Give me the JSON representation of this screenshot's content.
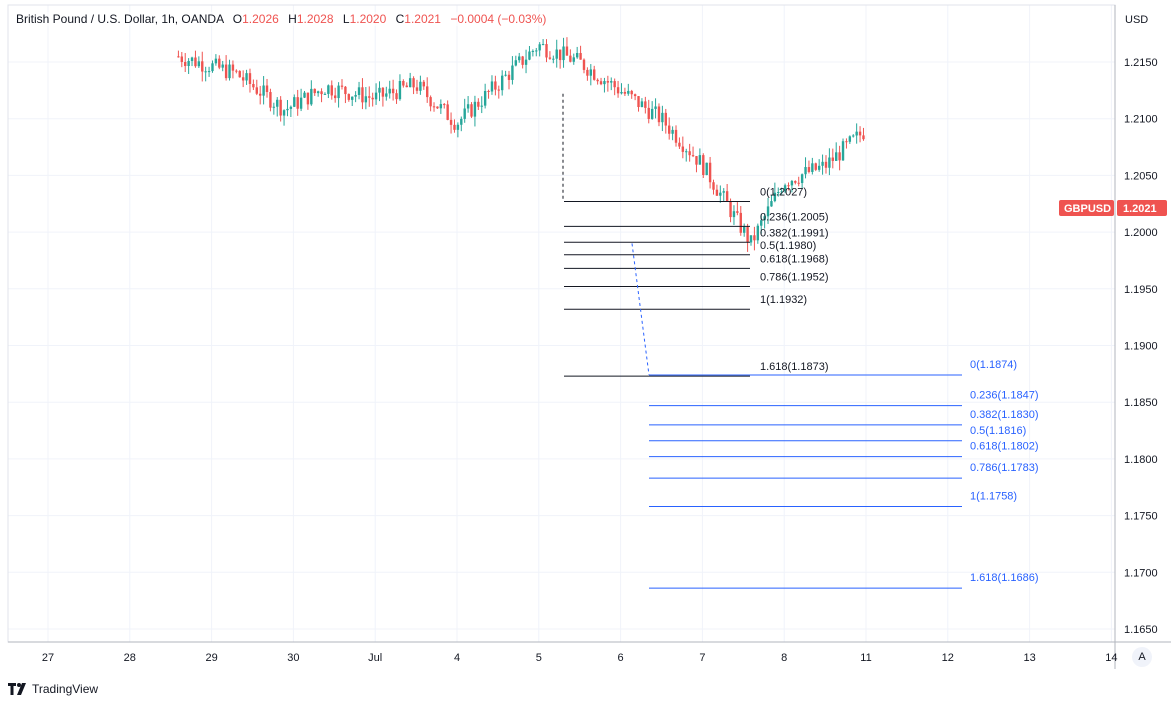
{
  "header": {
    "symbol_line": "British Pound / U.S. Dollar, 1h, OANDA",
    "open_label": "O",
    "open_value": "1.2026",
    "high_label": "H",
    "high_value": "1.2028",
    "low_label": "L",
    "low_value": "1.2020",
    "close_label": "C",
    "close_value": "1.2021",
    "change": "−0.0004 (−0.03%)"
  },
  "price_axis": {
    "currency": "USD",
    "symbol_tag": "GBPUSD",
    "last_price": "1.2021"
  },
  "footer": {
    "brand": "TradingView"
  },
  "auto_button": "A",
  "colors": {
    "up": "#26a69a",
    "down": "#ef5350",
    "fib_black": "#131722",
    "fib_blue": "#2962ff",
    "grid": "#f0f3fa"
  },
  "chart_data": {
    "type": "candlestick",
    "title": "British Pound / U.S. Dollar",
    "interval": "1h",
    "ylim": [
      1.1635,
      1.2185
    ],
    "y_ticks": [
      "1.2150",
      "1.2100",
      "1.2050",
      "1.2000",
      "1.1950",
      "1.1900",
      "1.1850",
      "1.1800",
      "1.1750",
      "1.1700",
      "1.1650"
    ],
    "x_ticks": [
      "27",
      "28",
      "29",
      "30",
      "Jul",
      "4",
      "5",
      "6",
      "7",
      "8",
      "11",
      "12",
      "13",
      "14"
    ],
    "price_path": [
      [
        0,
        1.219
      ],
      [
        0.9,
        1.2178
      ],
      [
        1.6,
        1.2155
      ],
      [
        2.3,
        1.214
      ],
      [
        2.9,
        1.2108
      ],
      [
        3.4,
        1.2128
      ],
      [
        4.0,
        1.2118
      ],
      [
        4.5,
        1.213
      ],
      [
        5.0,
        1.2096
      ],
      [
        5.5,
        1.213
      ],
      [
        6.0,
        1.2165
      ],
      [
        6.5,
        1.215
      ],
      [
        7.0,
        1.2125
      ],
      [
        7.5,
        1.21
      ],
      [
        8.0,
        1.206
      ],
      [
        8.6,
        1.199
      ],
      [
        9.0,
        1.2045
      ],
      [
        9.5,
        1.2058
      ],
      [
        10.0,
        1.209
      ],
      [
        10.5,
        1.209
      ],
      [
        11.2,
        1.213
      ],
      [
        11.6,
        1.216
      ],
      [
        12.0,
        1.213
      ],
      [
        12.6,
        1.211
      ],
      [
        13.5,
        1.2105
      ],
      [
        14.3,
        1.211
      ],
      [
        15.0,
        1.212
      ],
      [
        15.3,
        1.2095
      ],
      [
        15.8,
        1.2
      ],
      [
        16.2,
        1.196
      ],
      [
        16.6,
        1.193
      ],
      [
        17.0,
        1.1945
      ],
      [
        17.6,
        1.196
      ],
      [
        18.1,
        1.194
      ],
      [
        18.6,
        1.1945
      ],
      [
        19.1,
        1.1905
      ],
      [
        19.6,
        1.191
      ],
      [
        20.3,
        1.1925
      ],
      [
        20.9,
        1.1935
      ],
      [
        21.5,
        1.195
      ],
      [
        21.9,
        1.199
      ],
      [
        22.3,
        1.199
      ],
      [
        22.7,
        1.201
      ],
      [
        23.2,
        1.203
      ],
      [
        23.6,
        1.202
      ],
      [
        24.0,
        1.1975
      ],
      [
        24.3,
        1.193
      ],
      [
        24.6,
        1.199
      ],
      [
        25.0,
        1.203
      ],
      [
        25.4,
        1.203
      ],
      [
        25.8,
        1.2021
      ]
    ],
    "fib_retracement": {
      "label_color": "black",
      "levels": [
        {
          "ratio": "0",
          "price": 1.2027,
          "label": "0(1.2027)"
        },
        {
          "ratio": "0.236",
          "price": 1.2005,
          "label": "0.236(1.2005)"
        },
        {
          "ratio": "0.382",
          "price": 1.1991,
          "label": "0.382(1.1991)"
        },
        {
          "ratio": "0.5",
          "price": 1.198,
          "label": "0.5(1.1980)"
        },
        {
          "ratio": "0.618",
          "price": 1.1968,
          "label": "0.618(1.1968)"
        },
        {
          "ratio": "0.786",
          "price": 1.1952,
          "label": "0.786(1.1952)"
        },
        {
          "ratio": "1",
          "price": 1.1932,
          "label": "1(1.1932)"
        },
        {
          "ratio": "1.618",
          "price": 1.1873,
          "label": "1.618(1.1873)"
        }
      ]
    },
    "fib_extension": {
      "label_color": "blue",
      "levels": [
        {
          "ratio": "0",
          "price": 1.1874,
          "label": "0(1.1874)"
        },
        {
          "ratio": "0.236",
          "price": 1.1847,
          "label": "0.236(1.1847)"
        },
        {
          "ratio": "0.382",
          "price": 1.183,
          "label": "0.382(1.1830)"
        },
        {
          "ratio": "0.5",
          "price": 1.1816,
          "label": "0.5(1.1816)"
        },
        {
          "ratio": "0.618",
          "price": 1.1802,
          "label": "0.618(1.1802)"
        },
        {
          "ratio": "0.786",
          "price": 1.1783,
          "label": "0.786(1.1783)"
        },
        {
          "ratio": "1",
          "price": 1.1758,
          "label": "1(1.1758)"
        },
        {
          "ratio": "1.618",
          "price": 1.1686,
          "label": "1.618(1.1686)"
        }
      ]
    },
    "last_price": 1.2021,
    "grid": true,
    "legend": "none"
  }
}
